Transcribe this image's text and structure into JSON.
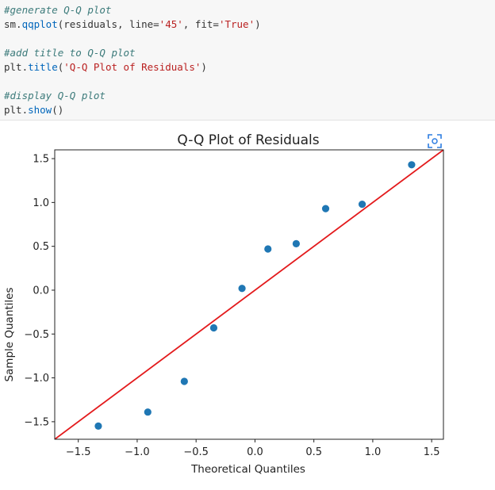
{
  "code_cell": {
    "lines": [
      {
        "type": "comment",
        "text": "#generate Q-Q plot"
      },
      {
        "type": "code",
        "parts": [
          [
            "plain",
            "sm."
          ],
          [
            "fn",
            "qqplot"
          ],
          [
            "plain",
            "(residuals, line="
          ],
          [
            "str",
            "'45'"
          ],
          [
            "plain",
            ", fit="
          ],
          [
            "str",
            "'True'"
          ],
          [
            "plain",
            ")"
          ]
        ]
      },
      {
        "type": "blank"
      },
      {
        "type": "comment",
        "text": "#add title to Q-Q plot"
      },
      {
        "type": "code",
        "parts": [
          [
            "plain",
            "plt."
          ],
          [
            "fn",
            "title"
          ],
          [
            "plain",
            "("
          ],
          [
            "str",
            "'Q-Q Plot of Residuals'"
          ],
          [
            "plain",
            ")"
          ]
        ]
      },
      {
        "type": "blank"
      },
      {
        "type": "comment",
        "text": "#display Q-Q plot"
      },
      {
        "type": "code",
        "parts": [
          [
            "plain",
            "plt."
          ],
          [
            "fn",
            "show"
          ],
          [
            "plain",
            "()"
          ]
        ]
      }
    ]
  },
  "colors": {
    "points": "#1f77b4",
    "line": "#e31a1c",
    "fullscreen_icon": "#2d7de1"
  },
  "fullscreen_icon": "fullscreen-icon",
  "chart_data": {
    "type": "scatter",
    "title": "Q-Q Plot of Residuals",
    "xlabel": "Theoretical Quantiles",
    "ylabel": "Sample Quantiles",
    "xlim": [
      -1.7,
      1.6
    ],
    "ylim": [
      -1.7,
      1.6
    ],
    "xticks": [
      -1.5,
      -1.0,
      -0.5,
      0.0,
      0.5,
      1.0,
      1.5
    ],
    "xtick_labels": [
      "−1.5",
      "−1.0",
      "−0.5",
      "0.0",
      "0.5",
      "1.0",
      "1.5"
    ],
    "yticks": [
      -1.5,
      -1.0,
      -0.5,
      0.0,
      0.5,
      1.0,
      1.5
    ],
    "ytick_labels": [
      "−1.5",
      "−1.0",
      "−0.5",
      "0.0",
      "0.5",
      "1.0",
      "1.5"
    ],
    "grid": false,
    "points": [
      {
        "x": -1.33,
        "y": -1.55
      },
      {
        "x": -0.91,
        "y": -1.39
      },
      {
        "x": -0.6,
        "y": -1.04
      },
      {
        "x": -0.35,
        "y": -0.43
      },
      {
        "x": -0.11,
        "y": 0.02
      },
      {
        "x": 0.11,
        "y": 0.47
      },
      {
        "x": 0.35,
        "y": 0.53
      },
      {
        "x": 0.6,
        "y": 0.93
      },
      {
        "x": 0.91,
        "y": 0.98
      },
      {
        "x": 1.33,
        "y": 1.43
      }
    ],
    "reference_line": {
      "slope": 1,
      "intercept": 0,
      "label": "45-degree line"
    }
  }
}
